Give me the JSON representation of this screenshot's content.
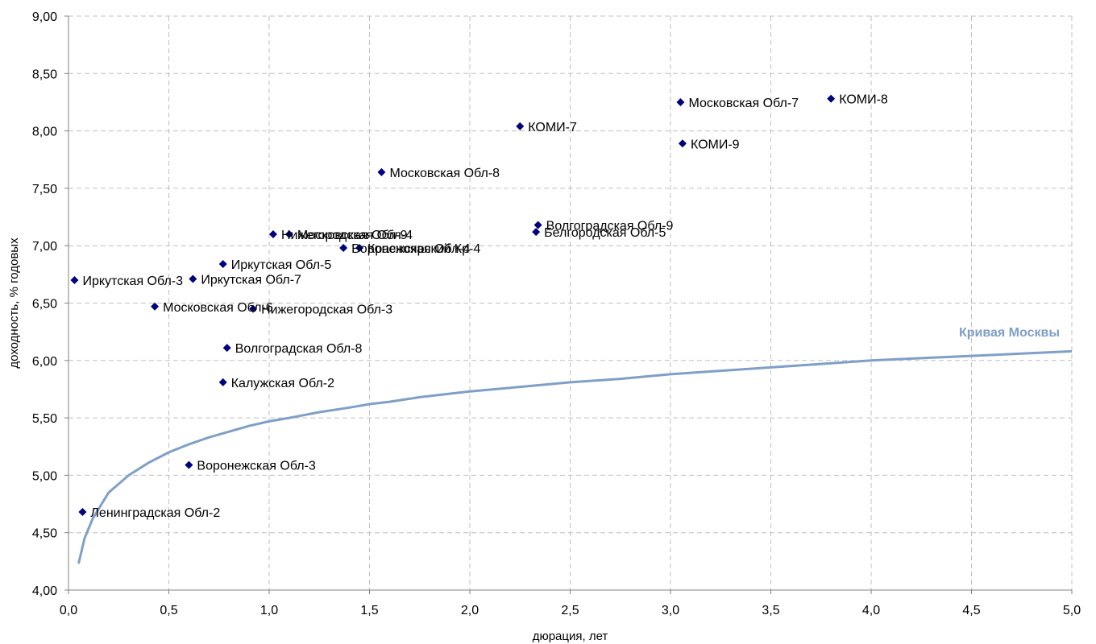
{
  "chart_data": {
    "type": "scatter",
    "xlabel": "дюрация, лет",
    "ylabel": "доходность, % годовых",
    "xlim": [
      0,
      5
    ],
    "ylim": [
      4,
      9
    ],
    "x_ticks": [
      "0,0",
      "0,5",
      "1,0",
      "1,5",
      "2,0",
      "2,5",
      "3,0",
      "3,5",
      "4,0",
      "4,5",
      "5,0"
    ],
    "y_ticks": [
      "4,00",
      "4,50",
      "5,00",
      "5,50",
      "6,00",
      "6,50",
      "7,00",
      "7,50",
      "8,00",
      "8,50",
      "9,00"
    ],
    "grid": true,
    "colors": {
      "points": "#000080",
      "curve": "#7f9fc8"
    },
    "points": [
      {
        "label": "Иркутская Обл-3",
        "x": 0.03,
        "y": 6.7
      },
      {
        "label": "Иркутская Обл-7",
        "x": 0.62,
        "y": 6.71
      },
      {
        "label": "Иркутская Обл-5",
        "x": 0.77,
        "y": 6.84
      },
      {
        "label": "Московская Обл-6",
        "x": 0.43,
        "y": 6.47
      },
      {
        "label": "Нижегородская Обл-3",
        "x": 0.92,
        "y": 6.45
      },
      {
        "label": "Волгоградская Обл-8",
        "x": 0.79,
        "y": 6.11
      },
      {
        "label": "Калужская Обл-2",
        "x": 0.77,
        "y": 5.81
      },
      {
        "label": "Воронежская Обл-3",
        "x": 0.6,
        "y": 5.09
      },
      {
        "label": "Ленинградская Обл-2",
        "x": 0.07,
        "y": 4.68
      },
      {
        "label": "Нижегородская Обл-4",
        "x": 1.02,
        "y": 7.1
      },
      {
        "label": "Московская Обл-9",
        "x": 1.1,
        "y": 7.1
      },
      {
        "label": "Воронежская Обл-4",
        "x": 1.37,
        "y": 6.98
      },
      {
        "label": "Красноярский Кр-4",
        "x": 1.45,
        "y": 6.98
      },
      {
        "label": "Московская Обл-8",
        "x": 1.56,
        "y": 7.64
      },
      {
        "label": "КОМИ-7",
        "x": 2.25,
        "y": 8.04
      },
      {
        "label": "Волгоградская Обл-9",
        "x": 2.34,
        "y": 7.18
      },
      {
        "label": "Белгородская Обл-5",
        "x": 2.33,
        "y": 7.12
      },
      {
        "label": "Московская Обл-7",
        "x": 3.05,
        "y": 8.25
      },
      {
        "label": "КОМИ-8",
        "x": 3.8,
        "y": 8.28
      },
      {
        "label": "КОМИ-9",
        "x": 3.06,
        "y": 7.89
      }
    ],
    "curve": {
      "name": "Кривая Москвы",
      "x": [
        0.05,
        0.08,
        0.12,
        0.2,
        0.3,
        0.4,
        0.5,
        0.6,
        0.7,
        0.8,
        0.9,
        1.0,
        1.1,
        1.25,
        1.4,
        1.5,
        1.6,
        1.75,
        2.0,
        2.25,
        2.5,
        2.75,
        3.0,
        3.25,
        3.5,
        3.75,
        4.0,
        4.25,
        4.5,
        4.75,
        5.0
      ],
      "y": [
        4.23,
        4.45,
        4.62,
        4.85,
        5.0,
        5.11,
        5.2,
        5.27,
        5.33,
        5.38,
        5.43,
        5.47,
        5.5,
        5.55,
        5.59,
        5.62,
        5.64,
        5.68,
        5.73,
        5.77,
        5.81,
        5.84,
        5.88,
        5.91,
        5.94,
        5.97,
        6.0,
        6.02,
        6.04,
        6.06,
        6.08
      ]
    }
  }
}
